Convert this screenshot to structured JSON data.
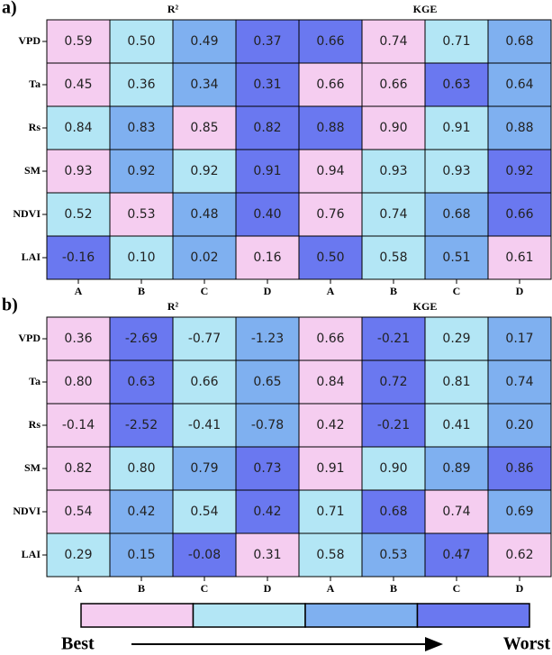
{
  "panels": [
    {
      "label": "a)",
      "headers": [
        "R²",
        "KGE"
      ],
      "row_labels": [
        "VPD",
        "Ta",
        "Rs",
        "SM",
        "NDVI",
        "LAI"
      ],
      "col_labels": [
        "A",
        "B",
        "C",
        "D",
        "A",
        "B",
        "C",
        "D"
      ],
      "rows": [
        [
          "0.59",
          "0.50",
          "0.49",
          "0.37",
          "0.66",
          "0.74",
          "0.71",
          "0.68"
        ],
        [
          "0.45",
          "0.36",
          "0.34",
          "0.31",
          "0.66",
          "0.66",
          "0.63",
          "0.64"
        ],
        [
          "0.84",
          "0.83",
          "0.85",
          "0.82",
          "0.88",
          "0.90",
          "0.91",
          "0.88"
        ],
        [
          "0.93",
          "0.92",
          "0.92",
          "0.91",
          "0.94",
          "0.93",
          "0.93",
          "0.92"
        ],
        [
          "0.52",
          "0.53",
          "0.48",
          "0.40",
          "0.76",
          "0.74",
          "0.68",
          "0.66"
        ],
        [
          "-0.16",
          "0.10",
          "0.02",
          "0.16",
          "0.50",
          "0.58",
          "0.51",
          "0.61"
        ]
      ],
      "colors": [
        [
          "#f5cdf0",
          "#b3e6f5",
          "#7fb0f0",
          "#6a78f0",
          "#6a78f0",
          "#f5cdf0",
          "#b3e6f5",
          "#7fb0f0"
        ],
        [
          "#f5cdf0",
          "#b3e6f5",
          "#7fb0f0",
          "#6a78f0",
          "#f5cdf0",
          "#f5cdf0",
          "#6a78f0",
          "#7fb0f0"
        ],
        [
          "#b3e6f5",
          "#7fb0f0",
          "#f5cdf0",
          "#6a78f0",
          "#6a78f0",
          "#f5cdf0",
          "#b3e6f5",
          "#7fb0f0"
        ],
        [
          "#f5cdf0",
          "#7fb0f0",
          "#b3e6f5",
          "#6a78f0",
          "#f5cdf0",
          "#b3e6f5",
          "#b3e6f5",
          "#6a78f0"
        ],
        [
          "#b3e6f5",
          "#f5cdf0",
          "#7fb0f0",
          "#6a78f0",
          "#f5cdf0",
          "#b3e6f5",
          "#7fb0f0",
          "#6a78f0"
        ],
        [
          "#6a78f0",
          "#b3e6f5",
          "#7fb0f0",
          "#f5cdf0",
          "#6a78f0",
          "#b3e6f5",
          "#7fb0f0",
          "#f5cdf0"
        ]
      ]
    },
    {
      "label": "b)",
      "headers": [
        "R²",
        "KGE"
      ],
      "row_labels": [
        "VPD",
        "Ta",
        "Rs",
        "SM",
        "NDVI",
        "LAI"
      ],
      "col_labels": [
        "A",
        "B",
        "C",
        "D",
        "A",
        "B",
        "C",
        "D"
      ],
      "rows": [
        [
          "0.36",
          "-2.69",
          "-0.77",
          "-1.23",
          "0.66",
          "-0.21",
          "0.29",
          "0.17"
        ],
        [
          "0.80",
          "0.63",
          "0.66",
          "0.65",
          "0.84",
          "0.72",
          "0.81",
          "0.74"
        ],
        [
          "-0.14",
          "-2.52",
          "-0.41",
          "-0.78",
          "0.42",
          "-0.21",
          "0.41",
          "0.20"
        ],
        [
          "0.82",
          "0.80",
          "0.79",
          "0.73",
          "0.91",
          "0.90",
          "0.89",
          "0.86"
        ],
        [
          "0.54",
          "0.42",
          "0.54",
          "0.42",
          "0.71",
          "0.68",
          "0.74",
          "0.69"
        ],
        [
          "0.29",
          "0.15",
          "-0.08",
          "0.31",
          "0.58",
          "0.53",
          "0.47",
          "0.62"
        ]
      ],
      "colors": [
        [
          "#f5cdf0",
          "#6a78f0",
          "#b3e6f5",
          "#7fb0f0",
          "#f5cdf0",
          "#6a78f0",
          "#b3e6f5",
          "#7fb0f0"
        ],
        [
          "#f5cdf0",
          "#6a78f0",
          "#b3e6f5",
          "#7fb0f0",
          "#f5cdf0",
          "#6a78f0",
          "#b3e6f5",
          "#7fb0f0"
        ],
        [
          "#f5cdf0",
          "#6a78f0",
          "#b3e6f5",
          "#7fb0f0",
          "#f5cdf0",
          "#6a78f0",
          "#b3e6f5",
          "#7fb0f0"
        ],
        [
          "#f5cdf0",
          "#b3e6f5",
          "#7fb0f0",
          "#6a78f0",
          "#f5cdf0",
          "#b3e6f5",
          "#7fb0f0",
          "#6a78f0"
        ],
        [
          "#f5cdf0",
          "#7fb0f0",
          "#b3e6f5",
          "#6a78f0",
          "#b3e6f5",
          "#6a78f0",
          "#f5cdf0",
          "#7fb0f0"
        ],
        [
          "#b3e6f5",
          "#7fb0f0",
          "#6a78f0",
          "#f5cdf0",
          "#b3e6f5",
          "#7fb0f0",
          "#6a78f0",
          "#f5cdf0"
        ]
      ]
    }
  ],
  "legend": {
    "colors": [
      "#f5cdf0",
      "#b3e6f5",
      "#7fb0f0",
      "#6a78f0"
    ],
    "start": "Best",
    "end": "Worst"
  }
}
